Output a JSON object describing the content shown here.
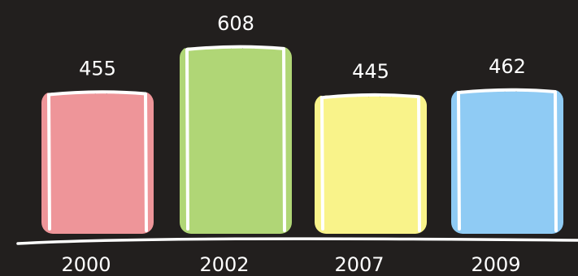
{
  "chart_data": {
    "type": "bar",
    "style": "chalkboard scribble",
    "categories": [
      "2000",
      "2002",
      "2007",
      "2009"
    ],
    "values": [
      455,
      608,
      445,
      462
    ],
    "colors": [
      "#ee9599",
      "#b0d676",
      "#f9f38a",
      "#8fcbf4"
    ],
    "title": "",
    "xlabel": "",
    "ylabel": "",
    "ylim": [
      0,
      660
    ],
    "grid": false,
    "legend": "none",
    "data_labels": true
  },
  "colors": {
    "background": "#221f1e",
    "chalk": "#ffffff"
  }
}
